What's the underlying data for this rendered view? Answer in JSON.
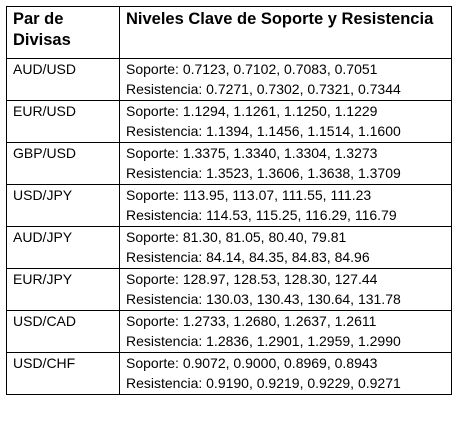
{
  "header": {
    "col1": "Par de Divisas",
    "col1_line1": "Par de",
    "col1_line2": "Divisas",
    "col2_line1": "Niveles Clave de Soporte y",
    "col2_line2": "Resistencia"
  },
  "rows": [
    {
      "pair": "AUD/USD",
      "soporte": "Soporte: 0.7123, 0.7102, 0.7083, 0.7051",
      "resistencia": "Resistencia: 0.7271, 0.7302, 0.7321, 0.7344"
    },
    {
      "pair": "EUR/USD",
      "soporte": "Soporte: 1.1294, 1.1261, 1.1250, 1.1229",
      "resistencia": "Resistencia: 1.1394, 1.1456, 1.1514, 1.1600"
    },
    {
      "pair": "GBP/USD",
      "soporte": "Soporte: 1.3375, 1.3340, 1.3304, 1.3273",
      "resistencia": "Resistencia: 1.3523, 1.3606, 1.3638, 1.3709"
    },
    {
      "pair": "USD/JPY",
      "soporte": "Soporte: 113.95, 113.07, 111.55, 111.23",
      "resistencia": "Resistencia: 114.53, 115.25, 116.29, 116.79"
    },
    {
      "pair": "AUD/JPY",
      "soporte": "Soporte: 81.30, 81.05, 80.40, 79.81",
      "resistencia": "Resistencia: 84.14, 84.35, 84.83, 84.96"
    },
    {
      "pair": "EUR/JPY",
      "soporte": "Soporte: 128.97, 128.53, 128.30, 127.44",
      "resistencia": "Resistencia: 130.03, 130.43, 130.64, 131.78"
    },
    {
      "pair": "USD/CAD",
      "soporte": "Soporte: 1.2733, 1.2680, 1.2637, 1.2611",
      "resistencia": "Resistencia: 1.2836, 1.2901, 1.2959, 1.2990"
    },
    {
      "pair": "USD/CHF",
      "soporte": "Soporte: 0.9072, 0.9000, 0.8969, 0.8943",
      "resistencia": "Resistencia: 0.9190, 0.9219, 0.9229, 0.9271"
    }
  ]
}
